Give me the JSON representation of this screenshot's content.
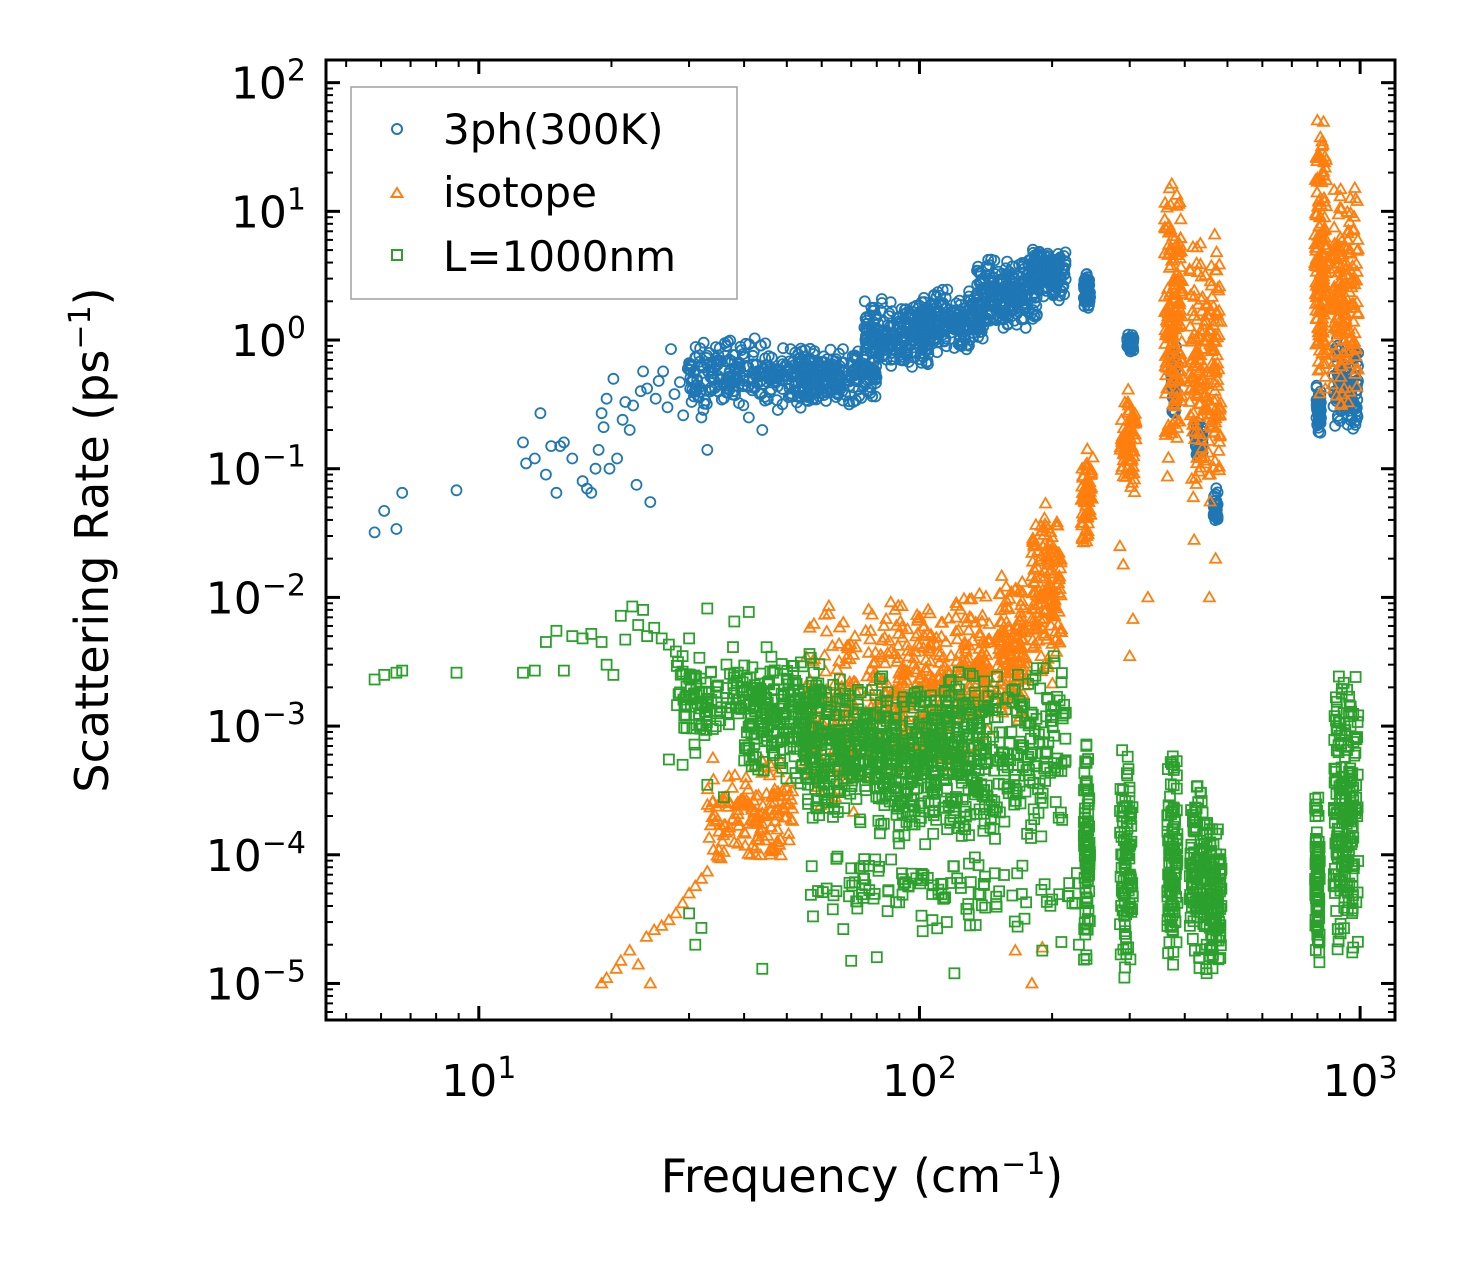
{
  "chart_data": {
    "type": "scatter",
    "xscale": "log",
    "yscale": "log",
    "xlim": [
      4.5,
      1200
    ],
    "ylim": [
      5.2e-06,
      150
    ],
    "xlabel": {
      "text": "Frequency (cm",
      "sup": "−1",
      "suffix": ")"
    },
    "ylabel": {
      "text": "Scattering Rate (ps",
      "sup": "−1",
      "suffix": ")"
    },
    "xticks": [
      {
        "value": 10,
        "base": "10",
        "exp": "1"
      },
      {
        "value": 100,
        "base": "10",
        "exp": "2"
      },
      {
        "value": 1000,
        "base": "10",
        "exp": "3"
      }
    ],
    "yticks": [
      {
        "value": 100,
        "base": "10",
        "exp": "2"
      },
      {
        "value": 10,
        "base": "10",
        "exp": "1"
      },
      {
        "value": 1,
        "base": "10",
        "exp": "0"
      },
      {
        "value": 0.1,
        "base": "10",
        "exp": "−1"
      },
      {
        "value": 0.01,
        "base": "10",
        "exp": "−2"
      },
      {
        "value": 0.001,
        "base": "10",
        "exp": "−3"
      },
      {
        "value": 0.0001,
        "base": "10",
        "exp": "−4"
      },
      {
        "value": 1e-05,
        "base": "10",
        "exp": "−5"
      }
    ],
    "legend_position": "top-left",
    "series": [
      {
        "name": "3ph(300K)",
        "marker": "circle",
        "color": "#1f77b4",
        "points": [
          [
            5.8,
            0.032
          ],
          [
            6.1,
            0.047
          ],
          [
            6.5,
            0.034
          ],
          [
            6.7,
            0.065
          ],
          [
            8.9,
            0.068
          ],
          [
            12.6,
            0.16
          ],
          [
            12.8,
            0.11
          ],
          [
            13.4,
            0.12
          ],
          [
            13.8,
            0.27
          ],
          [
            14.2,
            0.09
          ],
          [
            14.6,
            0.15
          ],
          [
            15.0,
            0.065
          ],
          [
            15.3,
            0.15
          ],
          [
            15.6,
            0.16
          ],
          [
            16.3,
            0.12
          ],
          [
            17.2,
            0.08
          ],
          [
            17.6,
            0.07
          ],
          [
            18.0,
            0.065
          ],
          [
            18.4,
            0.1
          ],
          [
            18.7,
            0.14
          ],
          [
            19.0,
            0.27
          ],
          [
            19.2,
            0.21
          ],
          [
            19.5,
            0.35
          ],
          [
            19.8,
            0.1
          ],
          [
            20.2,
            0.5
          ],
          [
            20.6,
            0.12
          ],
          [
            21.2,
            0.24
          ],
          [
            21.5,
            0.33
          ],
          [
            22.0,
            0.2
          ],
          [
            22.4,
            0.31
          ],
          [
            22.8,
            0.075
          ],
          [
            23.3,
            0.4
          ],
          [
            23.6,
            0.57
          ],
          [
            24.1,
            0.42
          ],
          [
            24.5,
            0.055
          ],
          [
            25.2,
            0.35
          ],
          [
            25.6,
            0.48
          ],
          [
            26.2,
            0.57
          ],
          [
            26.8,
            0.3
          ],
          [
            27.3,
            0.85
          ],
          [
            27.8,
            0.38
          ],
          [
            28.6,
            0.47
          ],
          [
            29.1,
            0.26
          ],
          [
            29.8,
            0.6
          ],
          [
            30.4,
            0.33
          ],
          [
            31.2,
            0.42
          ],
          [
            32.0,
            0.25
          ],
          [
            33.0,
            0.14
          ],
          [
            34.0,
            0.55
          ],
          [
            35.0,
            0.7
          ],
          [
            36.5,
            0.9
          ],
          [
            38.0,
            0.6
          ],
          [
            40.0,
            0.45
          ],
          [
            41.0,
            0.25
          ],
          [
            42.0,
            0.55
          ],
          [
            44.0,
            0.2
          ],
          [
            45.5,
            0.75
          ],
          [
            47.0,
            0.55
          ],
          [
            49.0,
            0.65
          ],
          [
            51.0,
            0.85
          ]
        ],
        "bands": [
          {
            "x": [
              30,
              56
            ],
            "y": [
              0.27,
              1.05
            ],
            "n": 260
          },
          {
            "x": [
              52,
              80
            ],
            "y": [
              0.3,
              0.9
            ],
            "n": 230
          },
          {
            "x": [
              75,
              105
            ],
            "y": [
              0.55,
              2.2
            ],
            "n": 230
          },
          {
            "x": [
              100,
              140
            ],
            "y": [
              0.75,
              2.6
            ],
            "n": 240
          },
          {
            "x": [
              135,
              185
            ],
            "y": [
              1.2,
              4.5
            ],
            "n": 230
          },
          {
            "x": [
              180,
              215
            ],
            "y": [
              2.0,
              5.2
            ],
            "n": 160
          },
          {
            "x": [
              236,
              244
            ],
            "y": [
              1.6,
              3.5
            ],
            "n": 55
          },
          {
            "x": [
              296,
              306
            ],
            "y": [
              0.8,
              1.15
            ],
            "n": 35
          },
          {
            "x": [
              372,
              382
            ],
            "y": [
              0.25,
              0.95
            ],
            "n": 55
          },
          {
            "x": [
              420,
              440
            ],
            "y": [
              0.11,
              0.24
            ],
            "n": 40
          },
          {
            "x": [
              465,
              475
            ],
            "y": [
              0.035,
              0.075
            ],
            "n": 30
          },
          {
            "x": [
              795,
              815
            ],
            "y": [
              0.17,
              0.45
            ],
            "n": 55
          },
          {
            "x": [
              870,
              990
            ],
            "y": [
              0.17,
              1.05
            ],
            "n": 130
          }
        ]
      },
      {
        "name": "isotope",
        "marker": "triangle",
        "color": "#ff7f0e",
        "points": [
          [
            19.0,
            1e-05
          ],
          [
            20.5,
            1.3e-05
          ],
          [
            21.0,
            1.5e-05
          ],
          [
            22.0,
            1.8e-05
          ],
          [
            23.0,
            1.4e-05
          ],
          [
            24.0,
            2.3e-05
          ],
          [
            25.0,
            2.6e-05
          ],
          [
            26.0,
            2.8e-05
          ],
          [
            27.0,
            3.1e-05
          ],
          [
            28.0,
            3.5e-05
          ],
          [
            29.0,
            4.2e-05
          ],
          [
            30.0,
            5e-05
          ],
          [
            31.0,
            5.7e-05
          ],
          [
            32.0,
            6.5e-05
          ],
          [
            33.0,
            7.4e-05
          ],
          [
            35.0,
            9.5e-05
          ],
          [
            36.0,
            0.000105
          ],
          [
            38.0,
            0.000125
          ],
          [
            40.0,
            0.00015
          ],
          [
            42.0,
            0.00018
          ],
          [
            44.0,
            0.00021
          ],
          [
            46.0,
            0.00025
          ],
          [
            48.0,
            0.00029
          ],
          [
            50.0,
            0.00033
          ],
          [
            19.5,
            1.1e-05
          ],
          [
            24.5,
            1e-05
          ],
          [
            180,
            1e-05
          ],
          [
            165,
            1.8e-05
          ],
          [
            190,
            1.9e-05
          ],
          [
            300,
            0.0035
          ],
          [
            305,
            0.0068
          ],
          [
            330,
            0.01
          ],
          [
            285,
            0.025
          ],
          [
            290,
            0.018
          ],
          [
            455,
            0.01
          ],
          [
            470,
            0.02
          ],
          [
            420,
            0.028
          ]
        ],
        "bands": [
          {
            "x": [
              33,
              52
            ],
            "y": [
              8e-05,
              0.0006
            ],
            "n": 150
          },
          {
            "x": [
              55,
              72
            ],
            "y": [
              0.0002,
              0.009
            ],
            "n": 140
          },
          {
            "x": [
              75,
              95
            ],
            "y": [
              0.0003,
              0.012
            ],
            "n": 140
          },
          {
            "x": [
              97,
              118
            ],
            "y": [
              0.00045,
              0.009
            ],
            "n": 130
          },
          {
            "x": [
              120,
              145
            ],
            "y": [
              0.0005,
              0.012
            ],
            "n": 140
          },
          {
            "x": [
              150,
              175
            ],
            "y": [
              0.0008,
              0.018
            ],
            "n": 140
          },
          {
            "x": [
              180,
              210
            ],
            "y": [
              0.002,
              0.06
            ],
            "n": 150
          },
          {
            "x": [
              233,
              248
            ],
            "y": [
              0.02,
              0.16
            ],
            "n": 70
          },
          {
            "x": [
              285,
              310
            ],
            "y": [
              0.06,
              0.45
            ],
            "n": 80
          },
          {
            "x": [
              360,
              395
            ],
            "y": [
              0.08,
              22
            ],
            "n": 180
          },
          {
            "x": [
              410,
              485
            ],
            "y": [
              0.05,
              7.0
            ],
            "n": 200
          },
          {
            "x": [
              790,
              840
            ],
            "y": [
              0.25,
              65
            ],
            "n": 160
          },
          {
            "x": [
              860,
              990
            ],
            "y": [
              0.2,
              18
            ],
            "n": 170
          }
        ]
      },
      {
        "name": "L=1000nm",
        "marker": "square",
        "color": "#2ca02c",
        "points": [
          [
            5.8,
            0.0023
          ],
          [
            6.1,
            0.0025
          ],
          [
            6.5,
            0.0026
          ],
          [
            6.7,
            0.0027
          ],
          [
            8.9,
            0.0026
          ],
          [
            12.6,
            0.0026
          ],
          [
            13.4,
            0.0027
          ],
          [
            14.2,
            0.0045
          ],
          [
            15.0,
            0.0055
          ],
          [
            15.6,
            0.0027
          ],
          [
            16.3,
            0.005
          ],
          [
            17.2,
            0.0048
          ],
          [
            18.0,
            0.0052
          ],
          [
            19.0,
            0.0045
          ],
          [
            19.5,
            0.003
          ],
          [
            20.2,
            0.0025
          ],
          [
            21.0,
            0.0072
          ],
          [
            21.5,
            0.0047
          ],
          [
            22.3,
            0.0085
          ],
          [
            23.0,
            0.0061
          ],
          [
            23.6,
            0.008
          ],
          [
            24.1,
            0.005
          ],
          [
            25.0,
            0.0058
          ],
          [
            26.0,
            0.0048
          ],
          [
            27.0,
            0.0043
          ],
          [
            28.0,
            0.0038
          ],
          [
            29.0,
            0.0035
          ],
          [
            30.0,
            0.0048
          ],
          [
            33.0,
            0.0082
          ],
          [
            38.0,
            0.0065
          ],
          [
            41.0,
            0.0077
          ],
          [
            45.0,
            0.0041
          ],
          [
            27.0,
            0.00055
          ],
          [
            29.0,
            0.0005
          ],
          [
            31.0,
            0.00062
          ],
          [
            33.0,
            0.00035
          ],
          [
            36.0,
            0.00028
          ],
          [
            30.0,
            3.5e-05
          ],
          [
            31.0,
            2e-05
          ],
          [
            32.0,
            2.7e-05
          ],
          [
            44.0,
            1.3e-05
          ],
          [
            70.0,
            1.5e-05
          ],
          [
            80.0,
            1.6e-05
          ],
          [
            120.0,
            1.2e-05
          ],
          [
            190.0,
            1.8e-05
          ],
          [
            210.0,
            2.1e-05
          ],
          [
            230.0,
            2e-05
          ]
        ],
        "bands": [
          {
            "x": [
              28,
              60
            ],
            "y": [
              0.0006,
              0.0045
            ],
            "n": 230
          },
          {
            "x": [
              40,
              80
            ],
            "y": [
              0.0003,
              0.0025
            ],
            "n": 220
          },
          {
            "x": [
              55,
              110
            ],
            "y": [
              0.00015,
              0.0022
            ],
            "n": 260
          },
          {
            "x": [
              80,
              150
            ],
            "y": [
              0.0001,
              0.0028
            ],
            "n": 260
          },
          {
            "x": [
              110,
              215
            ],
            "y": [
              0.00012,
              0.0038
            ],
            "n": 270
          },
          {
            "x": [
              55,
              230
            ],
            "y": [
              2.5e-05,
              0.00012
            ],
            "n": 120
          },
          {
            "x": [
              236,
              244
            ],
            "y": [
              1.3e-05,
              0.0011
            ],
            "n": 90
          },
          {
            "x": [
              285,
              305
            ],
            "y": [
              1e-05,
              0.00075
            ],
            "n": 100
          },
          {
            "x": [
              365,
              385
            ],
            "y": [
              1.1e-05,
              0.00075
            ],
            "n": 110
          },
          {
            "x": [
              410,
              450
            ],
            "y": [
              1e-05,
              0.00045
            ],
            "n": 120
          },
          {
            "x": [
              455,
              485
            ],
            "y": [
              1e-05,
              0.0002
            ],
            "n": 100
          },
          {
            "x": [
              790,
              810
            ],
            "y": [
              1.3e-05,
              0.0003
            ],
            "n": 80
          },
          {
            "x": [
              870,
              990
            ],
            "y": [
              1.3e-05,
              0.003
            ],
            "n": 200
          }
        ]
      }
    ]
  }
}
